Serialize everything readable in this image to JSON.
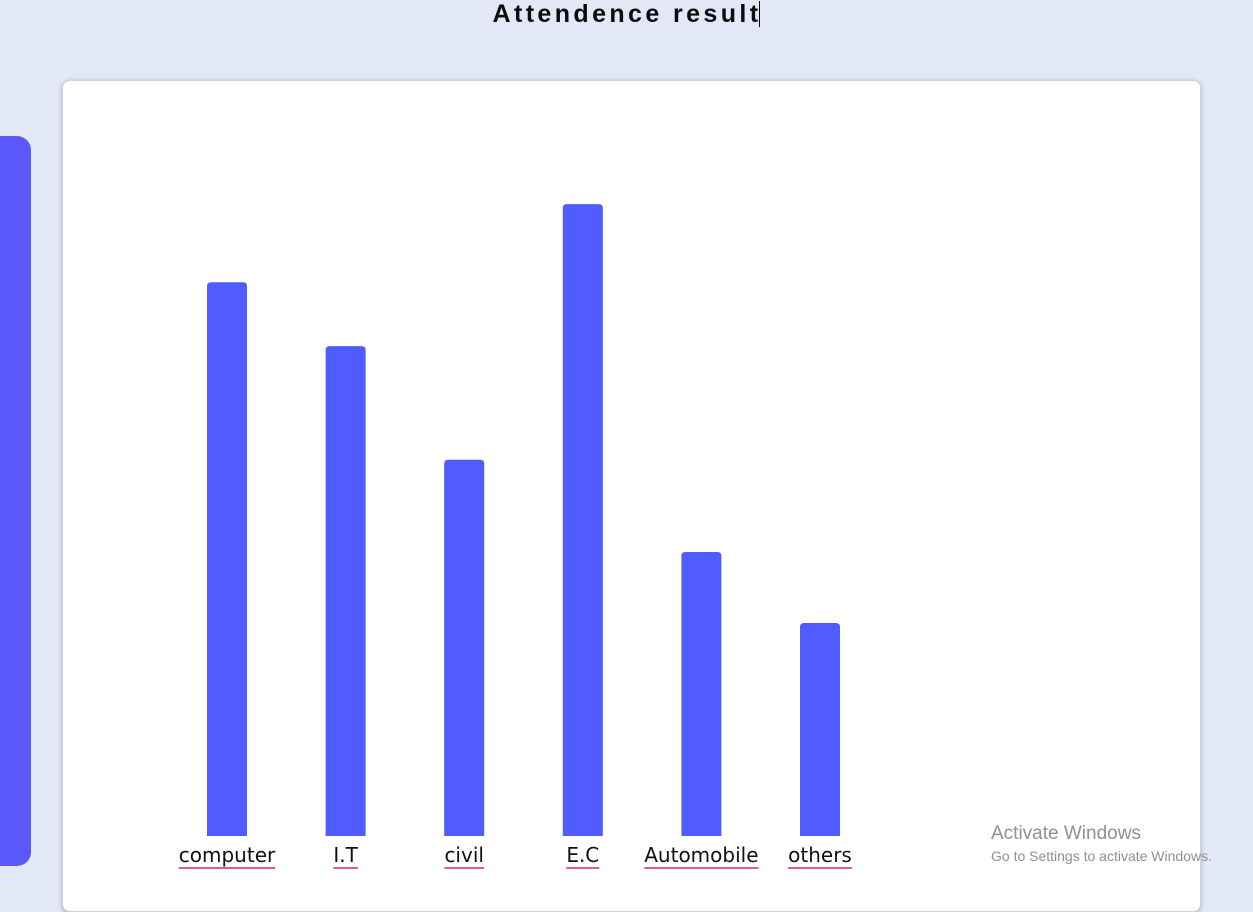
{
  "page": {
    "title": "Attendence result"
  },
  "colors": {
    "bar": "#505cff",
    "label_underline": "#e15a86",
    "sidebar": "#5a58fa",
    "background": "#e3e8f7"
  },
  "chart_data": {
    "type": "bar",
    "categories": [
      "computer",
      "I.T",
      "civil",
      "E.C",
      "Automobile",
      "others"
    ],
    "values": [
      78,
      69,
      53,
      89,
      40,
      30
    ],
    "ylim": [
      0,
      100
    ],
    "grid": false
  },
  "watermark": {
    "title": "Activate Windows",
    "subtitle": "Go to Settings to activate Windows."
  }
}
